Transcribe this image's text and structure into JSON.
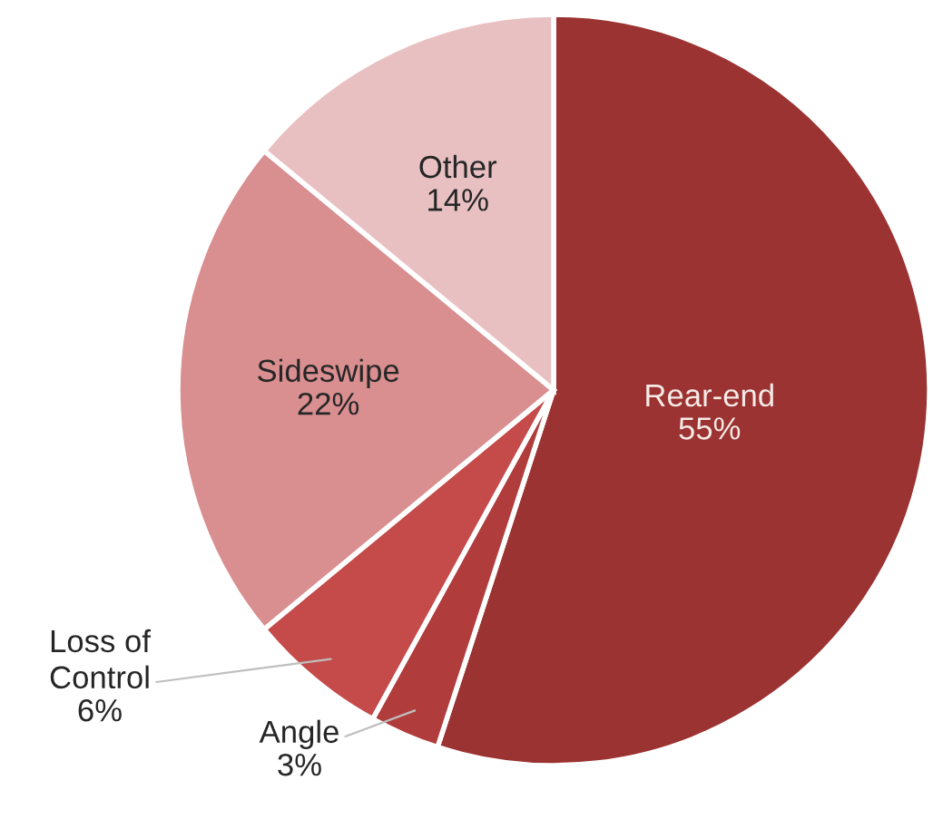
{
  "chart_data": {
    "type": "pie",
    "categories": [
      "Rear-end",
      "Angle",
      "Loss of\nControl",
      "Sideswipe",
      "Other"
    ],
    "values": [
      55,
      3,
      6,
      22,
      14
    ],
    "value_labels": [
      "55%",
      "3%",
      "6%",
      "22%",
      "14%"
    ],
    "colors": [
      "#9b3332",
      "#b13c3c",
      "#c54a4a",
      "#d98e90",
      "#e9c0c2"
    ],
    "legend": false
  }
}
